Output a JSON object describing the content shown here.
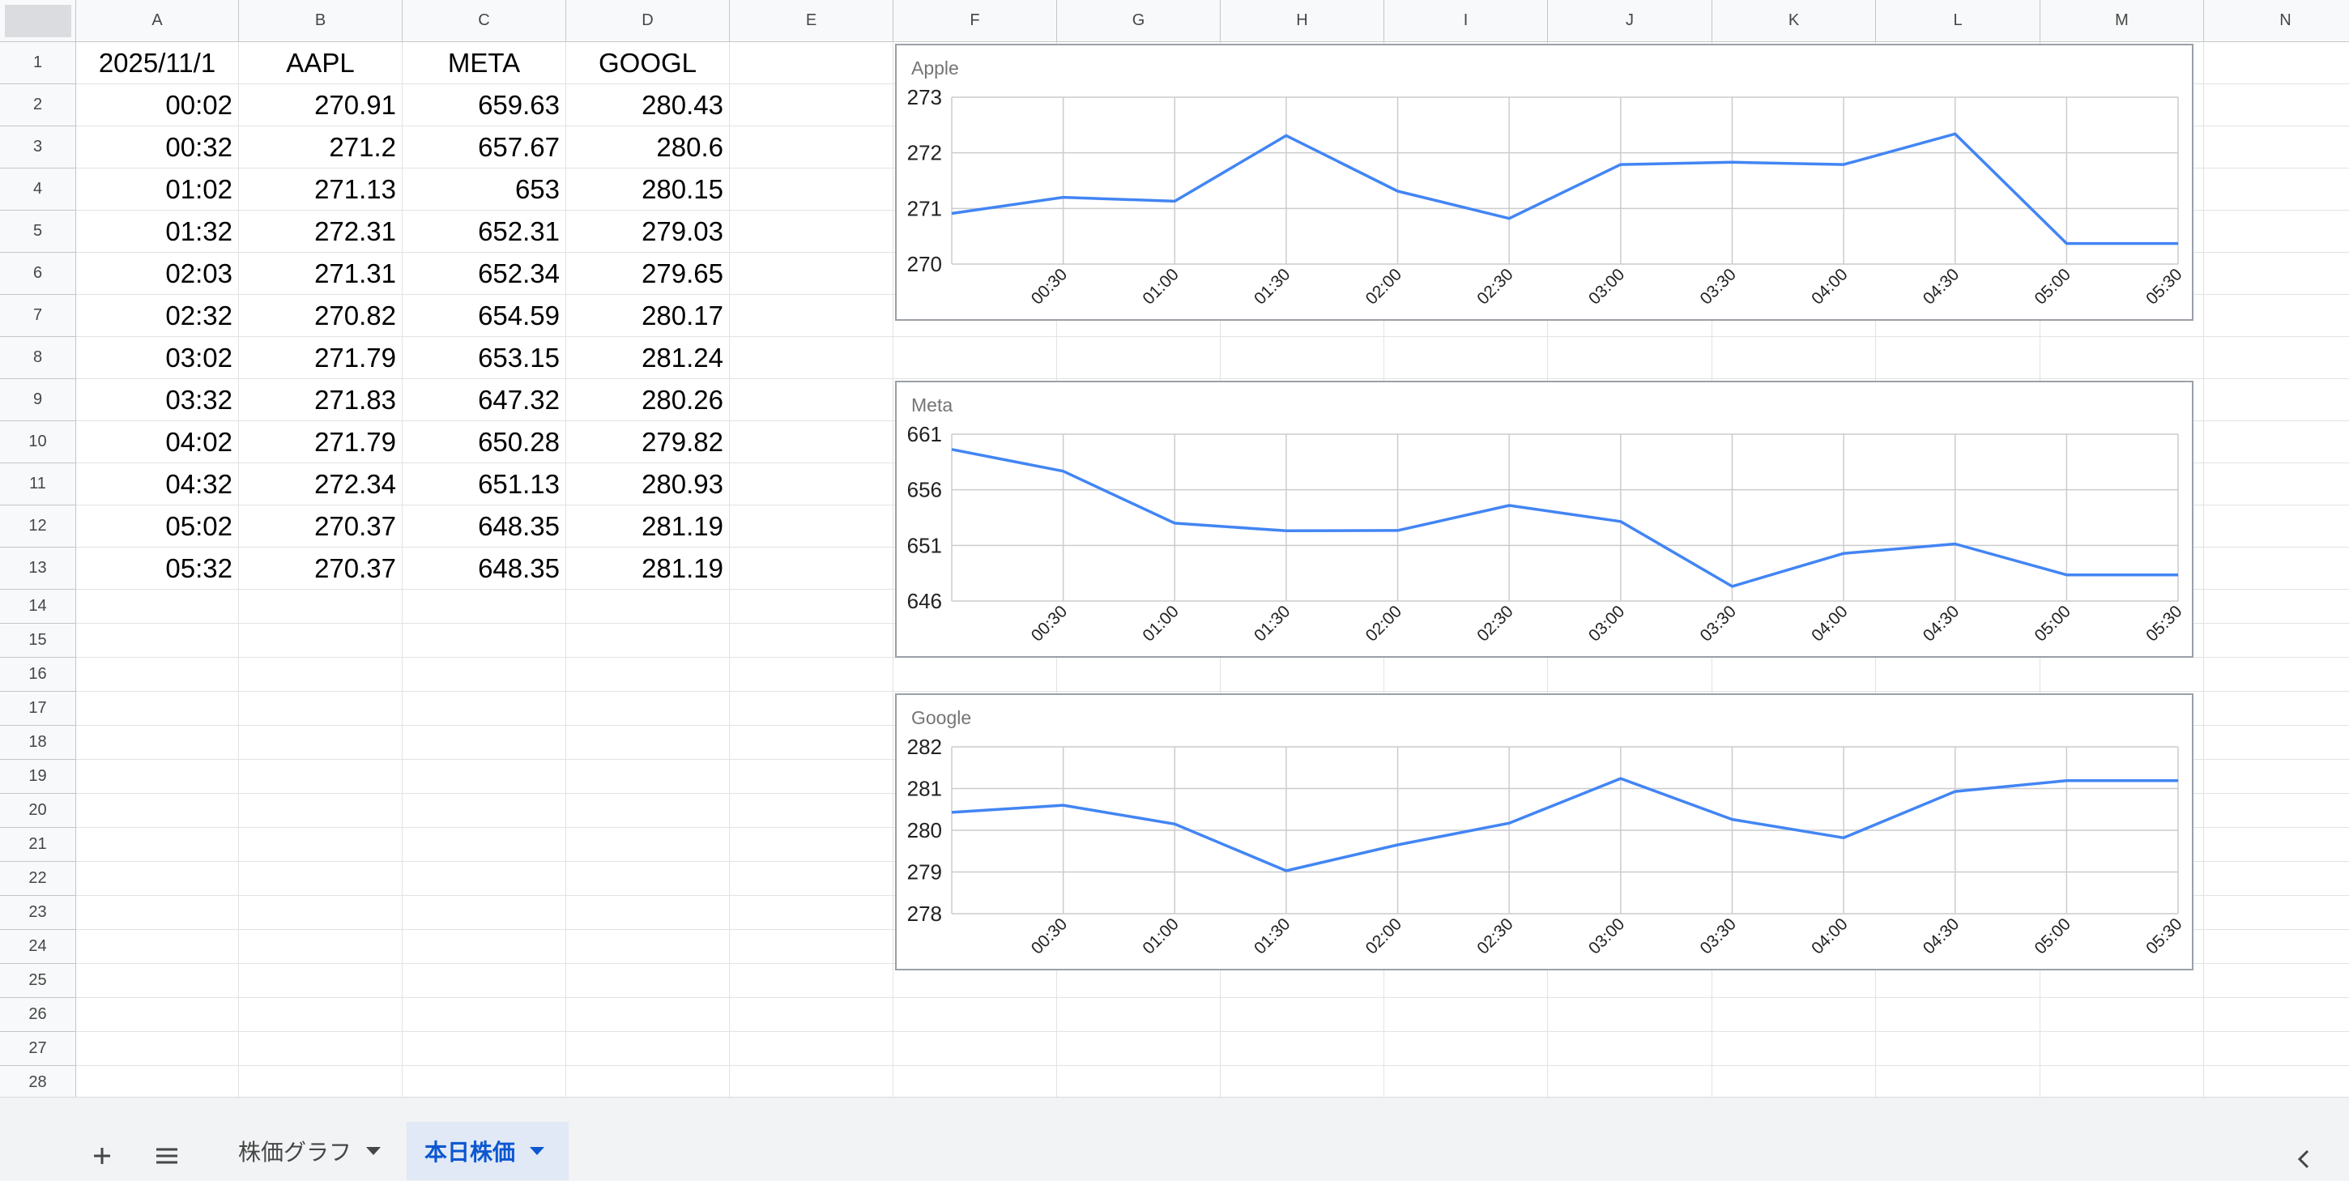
{
  "columns": [
    "A",
    "B",
    "C",
    "D",
    "E",
    "F",
    "G",
    "H",
    "I",
    "J",
    "K",
    "L",
    "M",
    "N"
  ],
  "rows": [
    "1",
    "2",
    "3",
    "4",
    "5",
    "6",
    "7",
    "8",
    "9",
    "10",
    "11",
    "12",
    "13",
    "14",
    "15",
    "16",
    "17",
    "18",
    "19",
    "20",
    "21",
    "22",
    "23",
    "24",
    "25",
    "26",
    "27",
    "28"
  ],
  "header_row": [
    "2025/11/1",
    "AAPL",
    "META",
    "GOOGL"
  ],
  "table": [
    [
      "00:02",
      "270.91",
      "659.63",
      "280.43"
    ],
    [
      "00:32",
      "271.2",
      "657.67",
      "280.6"
    ],
    [
      "01:02",
      "271.13",
      "653",
      "280.15"
    ],
    [
      "01:32",
      "272.31",
      "652.31",
      "279.03"
    ],
    [
      "02:03",
      "271.31",
      "652.34",
      "279.65"
    ],
    [
      "02:32",
      "270.82",
      "654.59",
      "280.17"
    ],
    [
      "03:02",
      "271.79",
      "653.15",
      "281.24"
    ],
    [
      "03:32",
      "271.83",
      "647.32",
      "280.26"
    ],
    [
      "04:02",
      "271.79",
      "650.28",
      "279.82"
    ],
    [
      "04:32",
      "272.34",
      "651.13",
      "280.93"
    ],
    [
      "05:02",
      "270.37",
      "648.35",
      "281.19"
    ],
    [
      "05:32",
      "270.37",
      "648.35",
      "281.19"
    ]
  ],
  "chart_data": [
    {
      "type": "line",
      "title": "Apple",
      "x": [
        "00:02",
        "00:32",
        "01:02",
        "01:32",
        "02:03",
        "02:32",
        "03:02",
        "03:32",
        "04:02",
        "04:32",
        "05:02",
        "05:32"
      ],
      "x_tick_labels": [
        "00:30",
        "01:00",
        "01:30",
        "02:00",
        "02:30",
        "03:00",
        "03:30",
        "04:00",
        "04:30",
        "05:00",
        "05:30"
      ],
      "series": [
        {
          "values": [
            270.91,
            271.2,
            271.13,
            272.31,
            271.31,
            270.82,
            271.79,
            271.83,
            271.79,
            272.34,
            270.37,
            270.37
          ]
        }
      ],
      "yticks": [
        270,
        271,
        272,
        273
      ],
      "ylim": [
        270,
        273
      ],
      "grid": true,
      "line_color": "#4285f4"
    },
    {
      "type": "line",
      "title": "Meta",
      "x": [
        "00:02",
        "00:32",
        "01:02",
        "01:32",
        "02:03",
        "02:32",
        "03:02",
        "03:32",
        "04:02",
        "04:32",
        "05:02",
        "05:32"
      ],
      "x_tick_labels": [
        "00:30",
        "01:00",
        "01:30",
        "02:00",
        "02:30",
        "03:00",
        "03:30",
        "04:00",
        "04:30",
        "05:00",
        "05:30"
      ],
      "series": [
        {
          "values": [
            659.63,
            657.67,
            653,
            652.31,
            652.34,
            654.59,
            653.15,
            647.32,
            650.28,
            651.13,
            648.35,
            648.35
          ]
        }
      ],
      "yticks": [
        646,
        651,
        656,
        661
      ],
      "ylim": [
        646,
        661
      ],
      "grid": true,
      "line_color": "#4285f4"
    },
    {
      "type": "line",
      "title": "Google",
      "x": [
        "00:02",
        "00:32",
        "01:02",
        "01:32",
        "02:03",
        "02:32",
        "03:02",
        "03:32",
        "04:02",
        "04:32",
        "05:02",
        "05:32"
      ],
      "x_tick_labels": [
        "00:30",
        "01:00",
        "01:30",
        "02:00",
        "02:30",
        "03:00",
        "03:30",
        "04:00",
        "04:30",
        "05:00",
        "05:30"
      ],
      "series": [
        {
          "values": [
            280.43,
            280.6,
            280.15,
            279.03,
            279.65,
            280.17,
            281.24,
            280.26,
            279.82,
            280.93,
            281.19,
            281.19
          ]
        }
      ],
      "yticks": [
        278,
        279,
        280,
        281,
        282
      ],
      "ylim": [
        278,
        282
      ],
      "grid": true,
      "line_color": "#4285f4"
    }
  ],
  "bottom_bar": {
    "add_sheet_icon": "plus-icon",
    "all_sheets_icon": "menu-icon",
    "tabs": [
      {
        "label": "株価グラフ",
        "active": false
      },
      {
        "label": "本日株価",
        "active": true
      }
    ],
    "collapse_icon": "chevron-left-icon"
  },
  "colors": {
    "active_tab_bg": "#e1e9f7",
    "active_tab_text": "#0b57d0",
    "chart_line": "#4285f4"
  }
}
